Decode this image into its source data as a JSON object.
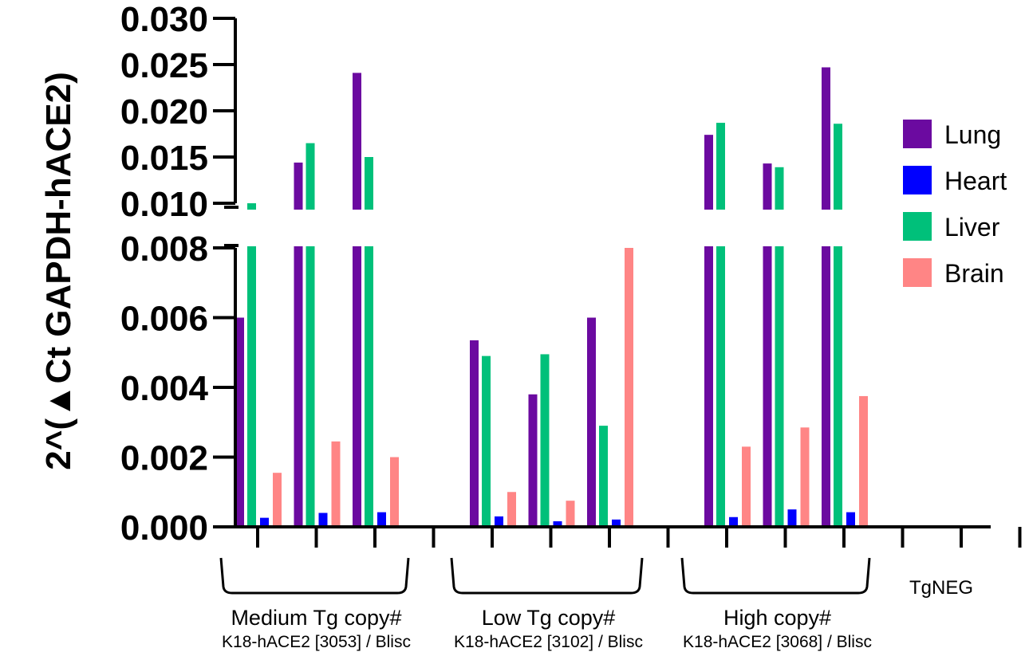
{
  "chart_data": {
    "type": "bar",
    "ylabel": "2^(▲Ct GAPDH-hACE2)",
    "ylim": [
      0,
      0.03
    ],
    "y_axis_break": {
      "lower_max": 0.008,
      "upper_min": 0.01,
      "upper_max": 0.03
    },
    "yticks_lower": [
      "0.000",
      "0.002",
      "0.004",
      "0.006",
      "0.008"
    ],
    "yticks_upper": [
      "0.010",
      "0.015",
      "0.020",
      "0.025",
      "0.030"
    ],
    "legend_position": "right",
    "series": [
      {
        "name": "Lung",
        "color": "#6B0AA0"
      },
      {
        "name": "Heart",
        "color": "#0000FF"
      },
      {
        "name": "Liver",
        "color": "#00C07A"
      },
      {
        "name": "Brain",
        "color": "#FF8585"
      }
    ],
    "groups": [
      {
        "title": "Medium Tg copy#",
        "subtitle": "K18-hACE2 [3053] / Blisc",
        "samples": [
          {
            "Lung": 0.006,
            "Heart": 0.00026,
            "Liver": 0.0099,
            "Brain": 0.00155
          },
          {
            "Lung": 0.0144,
            "Heart": 0.0004,
            "Liver": 0.0165,
            "Brain": 0.00245
          },
          {
            "Lung": 0.0241,
            "Heart": 0.00042,
            "Liver": 0.015,
            "Brain": 0.002
          }
        ]
      },
      {
        "title": "Low Tg copy#",
        "subtitle": "K18-hACE2 [3102] / Blisc",
        "samples": [
          {
            "Lung": 0.00535,
            "Heart": 0.0003,
            "Liver": 0.0049,
            "Brain": 0.001
          },
          {
            "Lung": 0.0038,
            "Heart": 0.00016,
            "Liver": 0.00495,
            "Brain": 0.00075
          },
          {
            "Lung": 0.006,
            "Heart": 0.00021,
            "Liver": 0.0029,
            "Brain": 0.008
          }
        ]
      },
      {
        "title": "High copy#",
        "subtitle": "K18-hACE2 [3068] / Blisc",
        "samples": [
          {
            "Lung": 0.0174,
            "Heart": 0.00028,
            "Liver": 0.0187,
            "Brain": 0.0023
          },
          {
            "Lung": 0.0143,
            "Heart": 0.0005,
            "Liver": 0.0139,
            "Brain": 0.00285
          },
          {
            "Lung": 0.0247,
            "Heart": 0.00042,
            "Liver": 0.0186,
            "Brain": 0.00375
          }
        ]
      },
      {
        "title": "TgNEG",
        "subtitle": "",
        "samples": [
          {
            "Lung": 0,
            "Heart": 0,
            "Liver": 0,
            "Brain": 0
          },
          {
            "Lung": 0,
            "Heart": 0,
            "Liver": 0,
            "Brain": 0
          }
        ]
      }
    ]
  }
}
